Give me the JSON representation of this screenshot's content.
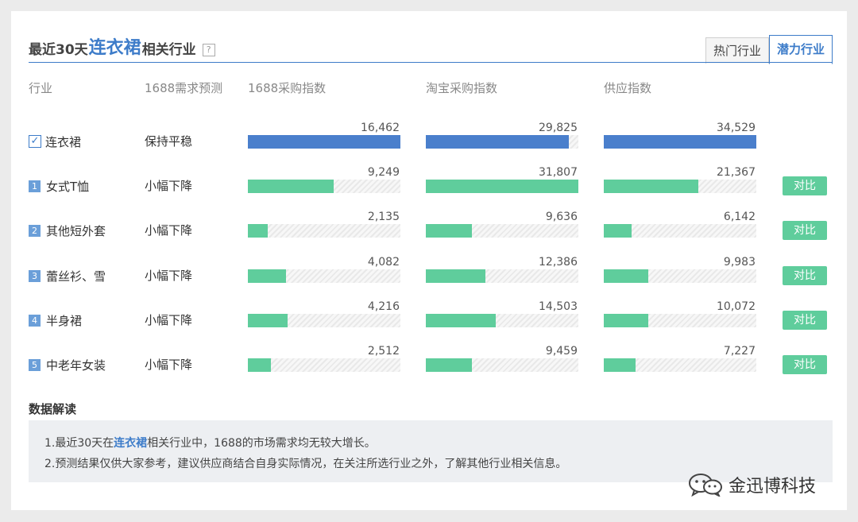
{
  "title": {
    "prefix": "最近30天",
    "keyword": "连衣裙",
    "suffix": "相关行业",
    "help": "?"
  },
  "tabs": [
    {
      "label": "热门行业",
      "active": false
    },
    {
      "label": "潜力行业",
      "active": true
    }
  ],
  "columns": {
    "industry": "行业",
    "forecast": "1688需求预测",
    "purchase1688": "1688采购指数",
    "taobao": "淘宝采购指数",
    "supply": "供应指数"
  },
  "rows": [
    {
      "rank": "",
      "checked": true,
      "name": "连衣裙",
      "trend": "保持平稳",
      "purchase1688": {
        "value": "16,462",
        "ratio": 1.0
      },
      "taobao": {
        "value": "29,825",
        "ratio": 0.94
      },
      "supply": {
        "value": "34,529",
        "ratio": 1.0
      },
      "compare": ""
    },
    {
      "rank": "1",
      "name": "女式T恤",
      "trend": "小幅下降",
      "purchase1688": {
        "value": "9,249",
        "ratio": 0.56
      },
      "taobao": {
        "value": "31,807",
        "ratio": 1.0
      },
      "supply": {
        "value": "21,367",
        "ratio": 0.62
      },
      "compare": "对比"
    },
    {
      "rank": "2",
      "name": "其他短外套",
      "trend": "小幅下降",
      "purchase1688": {
        "value": "2,135",
        "ratio": 0.13
      },
      "taobao": {
        "value": "9,636",
        "ratio": 0.3
      },
      "supply": {
        "value": "6,142",
        "ratio": 0.18
      },
      "compare": "对比"
    },
    {
      "rank": "3",
      "name": "蕾丝衫、雪",
      "trend": "小幅下降",
      "purchase1688": {
        "value": "4,082",
        "ratio": 0.25
      },
      "taobao": {
        "value": "12,386",
        "ratio": 0.39
      },
      "supply": {
        "value": "9,983",
        "ratio": 0.29
      },
      "compare": "对比"
    },
    {
      "rank": "4",
      "name": "半身裙",
      "trend": "小幅下降",
      "purchase1688": {
        "value": "4,216",
        "ratio": 0.26
      },
      "taobao": {
        "value": "14,503",
        "ratio": 0.46
      },
      "supply": {
        "value": "10,072",
        "ratio": 0.29
      },
      "compare": "对比"
    },
    {
      "rank": "5",
      "name": "中老年女装",
      "trend": "小幅下降",
      "purchase1688": {
        "value": "2,512",
        "ratio": 0.15
      },
      "taobao": {
        "value": "9,459",
        "ratio": 0.3
      },
      "supply": {
        "value": "7,227",
        "ratio": 0.21
      },
      "compare": "对比"
    }
  ],
  "analysis": {
    "title": "数据解读",
    "line1": {
      "a": "1.最近30天在",
      "keyword": "连衣裙",
      "b": "相关行业中，1688的市场需求均无较大增长。"
    },
    "line2": "2.预测结果仅供大家参考，建议供应商结合自身实际情况，在关注所选行业之外，了解其他行业相关信息。"
  },
  "watermark": {
    "text": "金迅博科技",
    "icon": "wechat-icon"
  },
  "colors": {
    "accent": "#3d7cc9",
    "primaryBar": "#4a7fcc",
    "bar": "#5fcd9c"
  }
}
